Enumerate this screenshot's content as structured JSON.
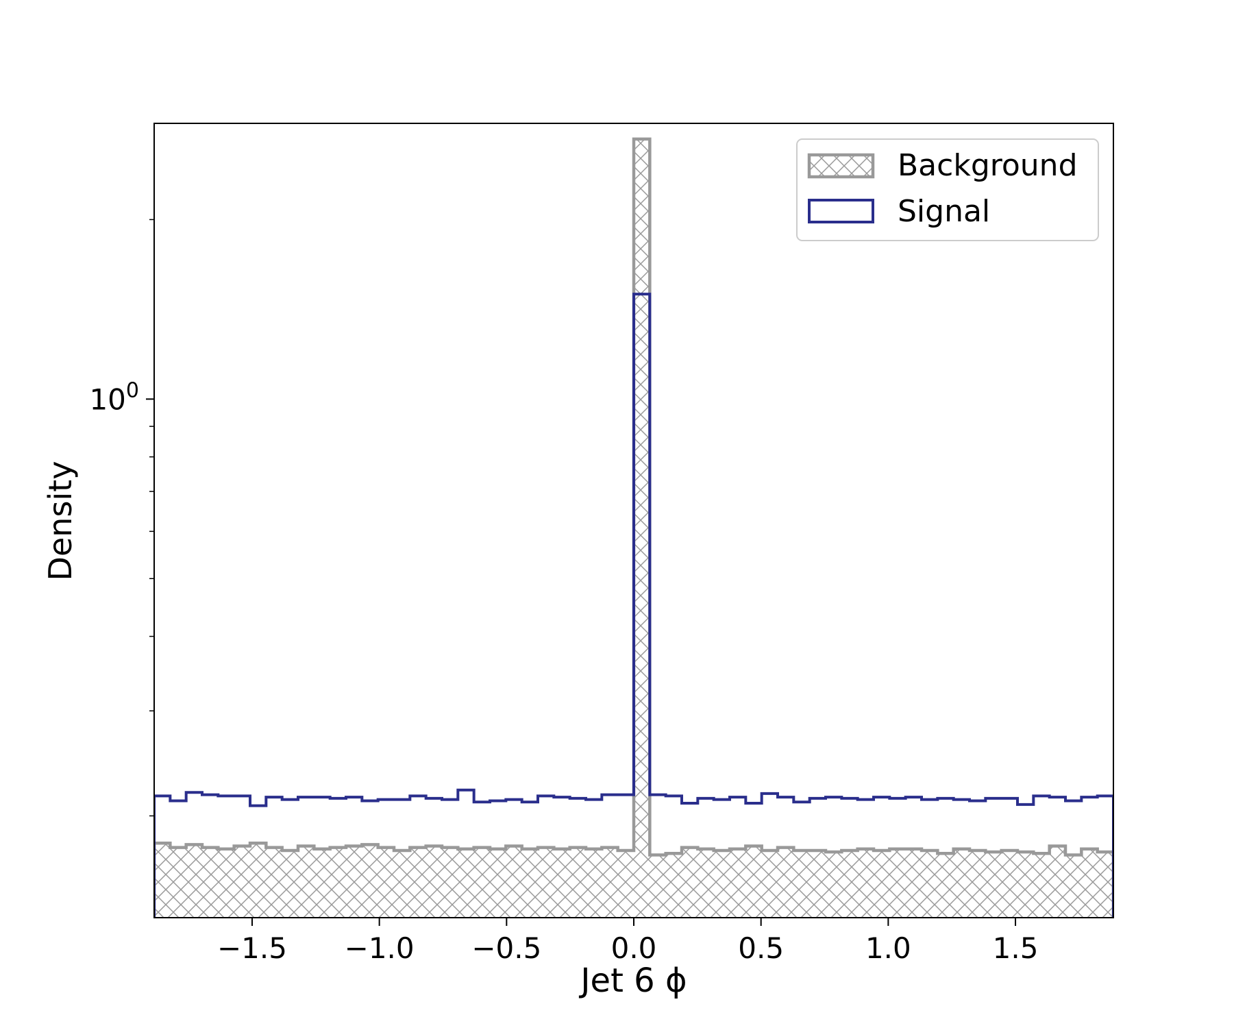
{
  "chart_data": {
    "type": "histogram",
    "title": "",
    "xlabel": "Jet 6 ϕ",
    "ylabel": "Density",
    "xlim": [
      -1.885,
      1.885
    ],
    "ylim": [
      0.135,
      2.9
    ],
    "y_scale": "log",
    "x_ticks": [
      -1.5,
      -1.0,
      -0.5,
      0.0,
      0.5,
      1.0,
      1.5
    ],
    "x_tick_labels": [
      "−1.5",
      "−1.0",
      "−0.5",
      "0.0",
      "0.5",
      "1.0",
      "1.5"
    ],
    "y_major_ticks": [
      1.0
    ],
    "y_major_tick_labels": [
      {
        "base": "10",
        "exp": "0"
      }
    ],
    "y_minor_ticks": [
      0.2,
      0.3,
      0.4,
      0.5,
      0.6,
      0.7,
      0.8,
      0.9,
      2.0
    ],
    "legend": {
      "position": "top-right",
      "entries": [
        "Background",
        "Signal"
      ]
    },
    "bin_edges_range": [
      -1.885,
      1.885
    ],
    "n_bins": 60,
    "series": [
      {
        "name": "Background",
        "style": "hatched",
        "color": "#999999",
        "values": [
          0.18,
          0.177,
          0.179,
          0.177,
          0.176,
          0.178,
          0.18,
          0.177,
          0.175,
          0.178,
          0.176,
          0.177,
          0.178,
          0.179,
          0.177,
          0.175,
          0.177,
          0.178,
          0.177,
          0.176,
          0.177,
          0.176,
          0.178,
          0.176,
          0.177,
          0.176,
          0.177,
          0.176,
          0.177,
          0.175,
          2.73,
          0.172,
          0.173,
          0.177,
          0.176,
          0.175,
          0.176,
          0.178,
          0.175,
          0.177,
          0.175,
          0.175,
          0.174,
          0.175,
          0.176,
          0.175,
          0.176,
          0.176,
          0.175,
          0.173,
          0.176,
          0.175,
          0.174,
          0.175,
          0.174,
          0.173,
          0.178,
          0.172,
          0.176,
          0.174
        ]
      },
      {
        "name": "Signal",
        "style": "step",
        "color": "#2a2e8c",
        "values": [
          0.216,
          0.212,
          0.219,
          0.217,
          0.216,
          0.216,
          0.208,
          0.215,
          0.213,
          0.215,
          0.215,
          0.214,
          0.215,
          0.212,
          0.213,
          0.213,
          0.216,
          0.214,
          0.213,
          0.221,
          0.211,
          0.212,
          0.213,
          0.211,
          0.216,
          0.215,
          0.214,
          0.213,
          0.217,
          0.217,
          1.5,
          0.217,
          0.216,
          0.21,
          0.214,
          0.213,
          0.215,
          0.21,
          0.218,
          0.215,
          0.211,
          0.214,
          0.215,
          0.214,
          0.213,
          0.215,
          0.214,
          0.215,
          0.213,
          0.214,
          0.213,
          0.212,
          0.214,
          0.214,
          0.209,
          0.216,
          0.215,
          0.212,
          0.215,
          0.216
        ]
      }
    ]
  }
}
